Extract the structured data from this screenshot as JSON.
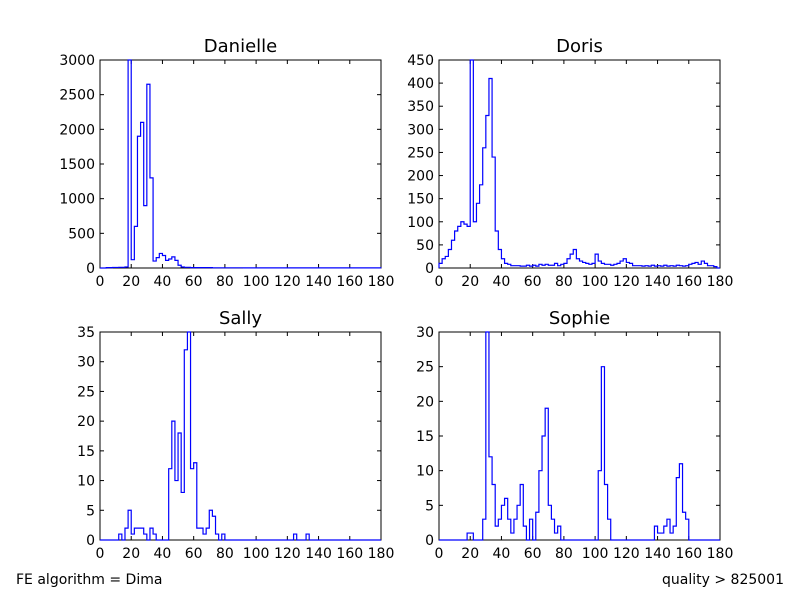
{
  "footer": {
    "left": "FE algorithm = Dima",
    "right": "quality > 825001"
  },
  "colors": {
    "line": "#0000ff",
    "frame": "#000000",
    "background": "#ffffff"
  },
  "chart_data": [
    {
      "type": "step-histogram",
      "title": "Danielle",
      "xlabel": "",
      "ylabel": "",
      "xlim": [
        0,
        180
      ],
      "ylim": [
        0,
        3000
      ],
      "xticks": [
        "0",
        "20",
        "40",
        "60",
        "80",
        "100",
        "120",
        "140",
        "160",
        "180"
      ],
      "yticks": [
        "0",
        "500",
        "1000",
        "1500",
        "2000",
        "2500",
        "3000"
      ],
      "series": [
        {
          "bin_width": 2,
          "x": [
            0,
            2,
            4,
            6,
            8,
            10,
            12,
            14,
            16,
            18,
            20,
            22,
            24,
            26,
            28,
            30,
            32,
            34,
            36,
            38,
            40,
            42,
            44,
            46,
            48,
            50,
            52,
            54,
            56,
            58,
            60,
            62,
            64,
            66,
            68,
            70,
            72,
            74,
            76,
            78,
            80,
            82,
            84,
            86,
            88,
            90,
            92,
            94,
            96,
            98,
            100,
            102,
            104,
            106,
            108,
            110,
            112,
            114,
            116,
            118,
            120,
            122,
            124,
            126,
            128,
            130,
            132,
            134,
            136,
            138,
            140,
            142,
            144,
            146,
            148,
            150,
            152,
            154,
            156,
            158,
            160,
            162,
            164,
            166,
            168,
            170,
            172,
            174,
            176,
            178
          ],
          "values": [
            0,
            0,
            5,
            5,
            8,
            8,
            10,
            10,
            15,
            3000,
            120,
            600,
            1900,
            2100,
            900,
            2650,
            1300,
            100,
            150,
            210,
            180,
            110,
            130,
            160,
            110,
            40,
            15,
            10,
            10,
            5,
            5,
            5,
            5,
            5,
            5,
            5,
            3,
            3,
            3,
            3,
            3,
            3,
            3,
            3,
            3,
            3,
            2,
            2,
            2,
            2,
            2,
            2,
            2,
            2,
            2,
            2,
            2,
            2,
            2,
            2,
            2,
            2,
            2,
            2,
            2,
            2,
            2,
            2,
            2,
            2,
            2,
            2,
            2,
            2,
            2,
            2,
            2,
            2,
            2,
            2,
            2,
            2,
            2,
            2,
            2,
            2,
            2,
            2,
            2,
            2
          ]
        }
      ]
    },
    {
      "type": "step-histogram",
      "title": "Doris",
      "xlabel": "",
      "ylabel": "",
      "xlim": [
        0,
        180
      ],
      "ylim": [
        0,
        450
      ],
      "xticks": [
        "0",
        "20",
        "40",
        "60",
        "80",
        "100",
        "120",
        "140",
        "160",
        "180"
      ],
      "yticks": [
        "0",
        "50",
        "100",
        "150",
        "200",
        "250",
        "300",
        "350",
        "400",
        "450"
      ],
      "series": [
        {
          "bin_width": 2,
          "x": [
            0,
            2,
            4,
            6,
            8,
            10,
            12,
            14,
            16,
            18,
            20,
            22,
            24,
            26,
            28,
            30,
            32,
            34,
            36,
            38,
            40,
            42,
            44,
            46,
            48,
            50,
            52,
            54,
            56,
            58,
            60,
            62,
            64,
            66,
            68,
            70,
            72,
            74,
            76,
            78,
            80,
            82,
            84,
            86,
            88,
            90,
            92,
            94,
            96,
            98,
            100,
            102,
            104,
            106,
            108,
            110,
            112,
            114,
            116,
            118,
            120,
            122,
            124,
            126,
            128,
            130,
            132,
            134,
            136,
            138,
            140,
            142,
            144,
            146,
            148,
            150,
            152,
            154,
            156,
            158,
            160,
            162,
            164,
            166,
            168,
            170,
            172,
            174,
            176,
            178
          ],
          "values": [
            10,
            20,
            25,
            40,
            60,
            80,
            90,
            100,
            95,
            90,
            450,
            100,
            140,
            180,
            260,
            330,
            410,
            240,
            80,
            40,
            20,
            10,
            8,
            5,
            5,
            5,
            4,
            4,
            6,
            4,
            6,
            4,
            8,
            6,
            8,
            6,
            6,
            10,
            5,
            8,
            10,
            20,
            30,
            40,
            20,
            15,
            12,
            10,
            8,
            10,
            30,
            15,
            10,
            8,
            8,
            6,
            8,
            10,
            15,
            20,
            12,
            10,
            5,
            5,
            5,
            4,
            5,
            4,
            6,
            4,
            5,
            4,
            6,
            4,
            5,
            4,
            6,
            5,
            4,
            5,
            8,
            10,
            12,
            8,
            15,
            10,
            5,
            5,
            3,
            0
          ]
        }
      ]
    },
    {
      "type": "step-histogram",
      "title": "Sally",
      "xlabel": "",
      "ylabel": "",
      "xlim": [
        0,
        180
      ],
      "ylim": [
        0,
        35
      ],
      "xticks": [
        "0",
        "20",
        "40",
        "60",
        "80",
        "100",
        "120",
        "140",
        "160",
        "180"
      ],
      "yticks": [
        "0",
        "5",
        "10",
        "15",
        "20",
        "25",
        "30",
        "35"
      ],
      "series": [
        {
          "bin_width": 2,
          "x": [
            0,
            2,
            4,
            6,
            8,
            10,
            12,
            14,
            16,
            18,
            20,
            22,
            24,
            26,
            28,
            30,
            32,
            34,
            36,
            38,
            40,
            42,
            44,
            46,
            48,
            50,
            52,
            54,
            56,
            58,
            60,
            62,
            64,
            66,
            68,
            70,
            72,
            74,
            76,
            78,
            80,
            82,
            84,
            86,
            88,
            90,
            92,
            94,
            96,
            98,
            100,
            102,
            104,
            106,
            108,
            110,
            112,
            114,
            116,
            118,
            120,
            122,
            124,
            126,
            128,
            130,
            132,
            134,
            136,
            138,
            140,
            142,
            144,
            146,
            148,
            150,
            152,
            154,
            156,
            158,
            160,
            162,
            164,
            166,
            168,
            170,
            172,
            174,
            176,
            178
          ],
          "values": [
            0,
            0,
            0,
            0,
            0,
            0,
            1,
            0,
            2,
            5,
            1,
            2,
            2,
            2,
            1,
            0,
            2,
            1,
            0,
            0,
            0,
            0,
            12,
            20,
            10,
            18,
            8,
            32,
            35,
            12,
            13,
            2,
            2,
            1,
            2,
            5,
            4,
            1,
            0,
            1,
            0,
            0,
            0,
            0,
            0,
            0,
            0,
            0,
            0,
            0,
            0,
            0,
            0,
            0,
            0,
            0,
            0,
            0,
            0,
            0,
            0,
            0,
            1,
            0,
            0,
            0,
            1,
            0,
            0,
            0,
            0,
            0,
            0,
            0,
            0,
            0,
            0,
            0,
            0,
            0,
            0,
            0,
            0,
            0,
            0,
            0,
            0,
            0,
            0,
            0
          ]
        }
      ]
    },
    {
      "type": "step-histogram",
      "title": "Sophie",
      "xlabel": "",
      "ylabel": "",
      "xlim": [
        0,
        180
      ],
      "ylim": [
        0,
        30
      ],
      "xticks": [
        "0",
        "20",
        "40",
        "60",
        "80",
        "100",
        "120",
        "140",
        "160",
        "180"
      ],
      "yticks": [
        "0",
        "5",
        "10",
        "15",
        "20",
        "25",
        "30"
      ],
      "series": [
        {
          "bin_width": 2,
          "x": [
            0,
            2,
            4,
            6,
            8,
            10,
            12,
            14,
            16,
            18,
            20,
            22,
            24,
            26,
            28,
            30,
            32,
            34,
            36,
            38,
            40,
            42,
            44,
            46,
            48,
            50,
            52,
            54,
            56,
            58,
            60,
            62,
            64,
            66,
            68,
            70,
            72,
            74,
            76,
            78,
            80,
            82,
            84,
            86,
            88,
            90,
            92,
            94,
            96,
            98,
            100,
            102,
            104,
            106,
            108,
            110,
            112,
            114,
            116,
            118,
            120,
            122,
            124,
            126,
            128,
            130,
            132,
            134,
            136,
            138,
            140,
            142,
            144,
            146,
            148,
            150,
            152,
            154,
            156,
            158,
            160,
            162,
            164,
            166,
            168,
            170,
            172,
            174,
            176,
            178
          ],
          "values": [
            0,
            0,
            0,
            0,
            0,
            0,
            0,
            0,
            0,
            1,
            1,
            0,
            0,
            0,
            3,
            30,
            12,
            8,
            2,
            3,
            5,
            6,
            3,
            1,
            3,
            5,
            8,
            2,
            0,
            3,
            0,
            4,
            10,
            15,
            19,
            5,
            3,
            1,
            2,
            0,
            0,
            0,
            0,
            0,
            0,
            0,
            0,
            0,
            0,
            0,
            0,
            10,
            25,
            8,
            3,
            0,
            0,
            0,
            0,
            0,
            0,
            0,
            0,
            0,
            0,
            0,
            0,
            0,
            0,
            2,
            1,
            1,
            2,
            3,
            1,
            2,
            9,
            11,
            4,
            3,
            0,
            0,
            0,
            0,
            0,
            0,
            0,
            0,
            0,
            0
          ]
        }
      ]
    }
  ]
}
